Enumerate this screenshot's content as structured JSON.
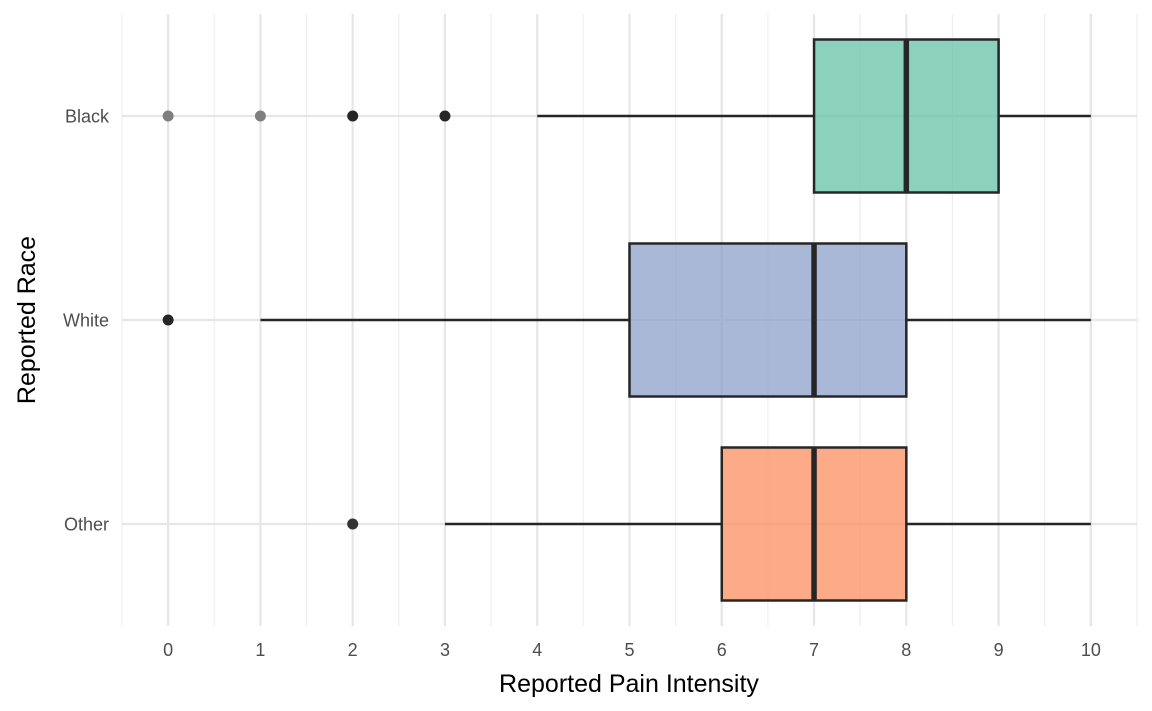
{
  "chart_data": {
    "type": "boxplot",
    "orientation": "horizontal",
    "xlabel": "Reported Pain Intensity",
    "ylabel": "Reported Race",
    "xlim": [
      -0.5,
      10.5
    ],
    "x_ticks": [
      0,
      1,
      2,
      3,
      4,
      5,
      6,
      7,
      8,
      9,
      10
    ],
    "grid": true,
    "legend": "none",
    "categories": [
      "Black",
      "White",
      "Other"
    ],
    "series": [
      {
        "category": "Black",
        "color": "#66c2a5",
        "whisker_low": 4,
        "q1": 7,
        "median": 8,
        "q3": 9,
        "whisker_high": 10,
        "outliers": [
          0,
          1,
          2,
          3
        ],
        "outlier_shades": [
          "#7f7f7f",
          "#7f7f7f",
          "#262626",
          "#262626"
        ]
      },
      {
        "category": "White",
        "color": "#8da0cb",
        "whisker_low": 1,
        "q1": 5,
        "median": 7,
        "q3": 8,
        "whisker_high": 10,
        "outliers": [
          0
        ],
        "outlier_shades": [
          "#262626"
        ]
      },
      {
        "category": "Other",
        "color": "#fc8d62",
        "whisker_low": 3,
        "q1": 6,
        "median": 7,
        "q3": 8,
        "whisker_high": 10,
        "outliers": [
          2
        ],
        "outlier_shades": [
          "#333333"
        ]
      }
    ]
  }
}
